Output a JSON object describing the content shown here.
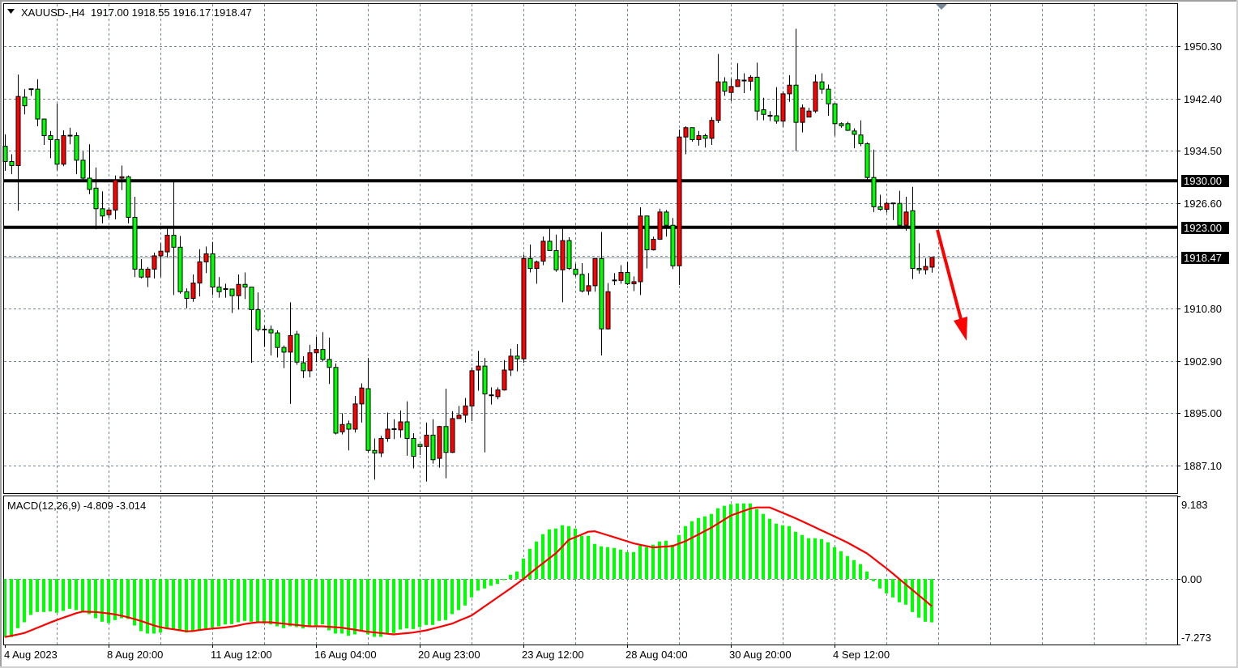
{
  "header": {
    "symbol_label": "XAUUSD-,H4",
    "ohlc_label": "1917.00 1918.55 1916.17 1918.47",
    "menu_icon": "triangle-down-icon"
  },
  "colors": {
    "bull_candle": "#ff0000",
    "bear_candle": "#00ff00",
    "wick": "#000000",
    "grid": "#778899",
    "macd_histogram": "#00ff00",
    "macd_signal": "#ff0000",
    "level_lines": "#000000",
    "bid_line": "#a0a8b0",
    "arrow": "#ff0000"
  },
  "chart_data": [
    {
      "type": "candlestick",
      "symbol": "XAUUSD-",
      "timeframe": "H4",
      "ylim": [
        1882.97,
        1956.62
      ],
      "y_tick_labels": [
        "1950.30",
        "1942.40",
        "1934.50",
        "1926.60",
        "1910.80",
        "1902.90",
        "1895.00",
        "1887.10"
      ],
      "x_tick_labels": [
        "4 Aug 2023",
        "8 Aug 20:00",
        "11 Aug 12:00",
        "16 Aug 04:00",
        "20 Aug 23:00",
        "23 Aug 12:00",
        "28 Aug 04:00",
        "30 Aug 20:00",
        "4 Sep 12:00"
      ],
      "grid": true,
      "horizontal_levels": [
        {
          "price": 1930.0,
          "label": "1930.00"
        },
        {
          "price": 1923.0,
          "label": "1923.00"
        }
      ],
      "bid": {
        "price": 1918.47,
        "label": "1918.47"
      },
      "annotation": {
        "type": "arrow",
        "direction": "down"
      },
      "ohlc": [
        [
          1935.2,
          1937.0,
          1931.5,
          1932.9
        ],
        [
          1932.9,
          1934.0,
          1931.0,
          1932.3
        ],
        [
          1932.3,
          1946.0,
          1925.5,
          1942.7
        ],
        [
          1942.6,
          1943.8,
          1940.0,
          1941.3
        ],
        [
          1943.8,
          1943.9,
          1942.8,
          1943.8
        ],
        [
          1943.8,
          1945.3,
          1938.2,
          1939.3
        ],
        [
          1939.3,
          1939.3,
          1935.4,
          1936.8
        ],
        [
          1936.8,
          1937.5,
          1933.4,
          1936.2
        ],
        [
          1936.2,
          1941.6,
          1931.6,
          1932.5
        ],
        [
          1932.5,
          1937.6,
          1932.2,
          1936.8
        ],
        [
          1936.8,
          1938.0,
          1935.5,
          1936.8
        ],
        [
          1936.8,
          1937.3,
          1931.0,
          1933.1
        ],
        [
          1933.1,
          1934.4,
          1929.9,
          1930.4
        ],
        [
          1930.4,
          1935.5,
          1928.0,
          1928.7
        ],
        [
          1928.9,
          1932.0,
          1922.7,
          1925.8
        ],
        [
          1925.8,
          1928.4,
          1923.6,
          1924.7
        ],
        [
          1924.9,
          1926.0,
          1924.4,
          1925.6
        ],
        [
          1925.6,
          1930.8,
          1924.2,
          1930.1
        ],
        [
          1930.4,
          1932.3,
          1928.6,
          1930.6
        ],
        [
          1930.6,
          1930.8,
          1923.6,
          1924.5
        ],
        [
          1924.5,
          1927.6,
          1915.5,
          1916.7
        ],
        [
          1916.7,
          1918.2,
          1915.3,
          1915.5
        ],
        [
          1915.5,
          1917.0,
          1914.0,
          1916.7
        ],
        [
          1916.7,
          1919.2,
          1915.3,
          1918.7
        ],
        [
          1918.7,
          1920.6,
          1915.5,
          1919.4
        ],
        [
          1919.3,
          1922.8,
          1918.5,
          1921.8
        ],
        [
          1921.8,
          1930.1,
          1912.8,
          1920.0
        ],
        [
          1920.0,
          1921.7,
          1913.0,
          1913.3
        ],
        [
          1913.3,
          1913.8,
          1910.8,
          1912.3
        ],
        [
          1912.3,
          1915.9,
          1911.8,
          1914.6
        ],
        [
          1914.6,
          1919.7,
          1912.6,
          1917.8
        ],
        [
          1917.8,
          1920.1,
          1916.1,
          1919.0
        ],
        [
          1919.0,
          1920.8,
          1912.8,
          1914.0
        ],
        [
          1914.0,
          1915.5,
          1912.4,
          1913.3
        ],
        [
          1913.7,
          1914.5,
          1912.4,
          1913.7
        ],
        [
          1913.7,
          1913.7,
          1910.1,
          1912.7
        ],
        [
          1912.7,
          1915.9,
          1910.6,
          1914.4
        ],
        [
          1914.4,
          1916.2,
          1912.2,
          1914.0
        ],
        [
          1914.0,
          1914.0,
          1902.6,
          1910.6
        ],
        [
          1910.6,
          1913.2,
          1907.3,
          1907.6
        ],
        [
          1907.6,
          1908.2,
          1905.0,
          1907.6
        ],
        [
          1907.6,
          1908.2,
          1903.7,
          1907.1
        ],
        [
          1907.1,
          1907.5,
          1903.4,
          1904.9
        ],
        [
          1904.9,
          1905.2,
          1901.8,
          1904.2
        ],
        [
          1904.2,
          1911.7,
          1896.4,
          1906.7
        ],
        [
          1906.9,
          1907.4,
          1902.3,
          1902.7
        ],
        [
          1902.6,
          1903.6,
          1900.3,
          1901.4
        ],
        [
          1901.4,
          1905.3,
          1900.4,
          1904.1
        ],
        [
          1904.1,
          1906.5,
          1902.7,
          1904.6
        ],
        [
          1904.6,
          1907.2,
          1902.8,
          1903.1
        ],
        [
          1903.1,
          1906.4,
          1899.4,
          1901.9
        ],
        [
          1901.9,
          1902.5,
          1891.8,
          1892.0
        ],
        [
          1892.2,
          1895.0,
          1891.8,
          1893.3
        ],
        [
          1893.4,
          1893.9,
          1889.4,
          1892.6
        ],
        [
          1892.6,
          1897.6,
          1892.1,
          1896.4
        ],
        [
          1896.4,
          1899.5,
          1893.6,
          1898.8
        ],
        [
          1898.7,
          1903.3,
          1889.1,
          1889.4
        ],
        [
          1889.4,
          1891.2,
          1885.0,
          1889.0
        ],
        [
          1889.0,
          1891.6,
          1888.4,
          1891.2
        ],
        [
          1891.2,
          1895.1,
          1890.7,
          1892.6
        ],
        [
          1892.6,
          1894.1,
          1891.1,
          1892.6
        ],
        [
          1892.5,
          1895.4,
          1891.3,
          1893.7
        ],
        [
          1893.7,
          1896.8,
          1888.6,
          1891.2
        ],
        [
          1891.2,
          1892.0,
          1886.7,
          1888.5
        ],
        [
          1890.3,
          1890.3,
          1888.7,
          1890.0
        ],
        [
          1890.0,
          1893.6,
          1884.7,
          1891.7
        ],
        [
          1891.7,
          1894.1,
          1887.4,
          1888.0
        ],
        [
          1888.2,
          1893.1,
          1886.8,
          1893.0
        ],
        [
          1893.0,
          1898.7,
          1885.2,
          1889.1
        ],
        [
          1889.1,
          1895.3,
          1889.0,
          1894.2
        ],
        [
          1894.2,
          1896.1,
          1894.2,
          1894.7
        ],
        [
          1894.7,
          1897.3,
          1893.6,
          1896.1
        ],
        [
          1896.1,
          1901.9,
          1893.8,
          1901.4
        ],
        [
          1901.5,
          1904.4,
          1898.4,
          1902.1
        ],
        [
          1902.1,
          1903.3,
          1889.1,
          1897.9
        ],
        [
          1897.7,
          1898.9,
          1896.3,
          1897.7
        ],
        [
          1897.5,
          1898.9,
          1897.1,
          1898.5
        ],
        [
          1898.5,
          1903.0,
          1898.4,
          1901.5
        ],
        [
          1901.5,
          1904.7,
          1900.6,
          1903.6
        ],
        [
          1903.6,
          1905.4,
          1901.3,
          1903.2
        ],
        [
          1903.2,
          1918.9,
          1902.6,
          1918.3
        ],
        [
          1918.3,
          1920.4,
          1916.2,
          1916.8
        ],
        [
          1916.8,
          1918.0,
          1914.5,
          1917.8
        ],
        [
          1917.9,
          1921.6,
          1917.3,
          1920.9
        ],
        [
          1920.9,
          1922.9,
          1919.5,
          1919.5
        ],
        [
          1919.5,
          1921.9,
          1916.3,
          1916.6
        ],
        [
          1916.6,
          1922.9,
          1911.7,
          1921.0
        ],
        [
          1921.0,
          1921.5,
          1916.6,
          1916.8
        ],
        [
          1916.7,
          1917.5,
          1915.6,
          1915.9
        ],
        [
          1915.9,
          1917.6,
          1913.2,
          1913.4
        ],
        [
          1913.4,
          1916.1,
          1912.8,
          1914.2
        ],
        [
          1914.2,
          1918.3,
          1913.3,
          1918.3
        ],
        [
          1918.3,
          1922.3,
          1903.7,
          1907.7
        ],
        [
          1907.7,
          1914.6,
          1907.6,
          1913.3
        ],
        [
          1915.0,
          1916.1,
          1914.3,
          1915.0
        ],
        [
          1915.0,
          1917.3,
          1914.5,
          1916.2
        ],
        [
          1916.2,
          1917.8,
          1914.3,
          1914.5
        ],
        [
          1914.5,
          1915.6,
          1913.4,
          1914.8
        ],
        [
          1914.8,
          1926.0,
          1912.8,
          1924.7
        ],
        [
          1924.7,
          1924.7,
          1916.8,
          1919.6
        ],
        [
          1919.6,
          1921.6,
          1919.5,
          1921.2
        ],
        [
          1921.2,
          1925.8,
          1921.1,
          1925.3
        ],
        [
          1925.3,
          1925.6,
          1921.6,
          1923.3
        ],
        [
          1923.3,
          1924.4,
          1916.7,
          1917.2
        ],
        [
          1917.2,
          1937.7,
          1914.3,
          1936.6
        ],
        [
          1936.6,
          1938.2,
          1934.0,
          1938.0
        ],
        [
          1938.0,
          1938.0,
          1935.9,
          1936.2
        ],
        [
          1936.2,
          1937.5,
          1935.3,
          1936.8
        ],
        [
          1936.8,
          1937.1,
          1935.0,
          1936.4
        ],
        [
          1936.4,
          1939.6,
          1935.4,
          1939.1
        ],
        [
          1939.1,
          1949.1,
          1938.7,
          1944.9
        ],
        [
          1944.9,
          1945.6,
          1942.8,
          1943.5
        ],
        [
          1943.3,
          1945.4,
          1942.0,
          1944.2
        ],
        [
          1944.2,
          1947.7,
          1944.2,
          1945.2
        ],
        [
          1945.1,
          1946.2,
          1943.2,
          1945.1
        ],
        [
          1945.0,
          1945.9,
          1943.6,
          1945.6
        ],
        [
          1945.6,
          1947.8,
          1939.1,
          1940.5
        ],
        [
          1940.7,
          1942.5,
          1939.1,
          1940.0
        ],
        [
          1939.8,
          1940.5,
          1939.0,
          1939.8
        ],
        [
          1939.8,
          1944.1,
          1938.6,
          1939.0
        ],
        [
          1939.0,
          1943.5,
          1938.1,
          1943.1
        ],
        [
          1943.1,
          1945.9,
          1941.9,
          1944.4
        ],
        [
          1944.4,
          1952.9,
          1934.5,
          1938.8
        ],
        [
          1938.8,
          1941.5,
          1937.3,
          1941.0
        ],
        [
          1939.6,
          1941.0,
          1939.6,
          1940.5
        ],
        [
          1940.5,
          1946.0,
          1940.2,
          1944.9
        ],
        [
          1944.9,
          1946.2,
          1943.1,
          1943.8
        ],
        [
          1943.8,
          1944.5,
          1939.8,
          1941.6
        ],
        [
          1941.6,
          1941.7,
          1936.8,
          1938.6
        ],
        [
          1938.6,
          1938.8,
          1938.0,
          1938.3
        ],
        [
          1938.6,
          1938.9,
          1937.5,
          1937.6
        ],
        [
          1937.5,
          1937.9,
          1934.9,
          1937.0
        ],
        [
          1936.9,
          1939.1,
          1935.2,
          1935.6
        ],
        [
          1935.6,
          1935.8,
          1929.8,
          1930.5
        ],
        [
          1930.5,
          1934.7,
          1925.3,
          1926.1
        ],
        [
          1926.1,
          1927.9,
          1925.5,
          1925.7
        ],
        [
          1925.7,
          1926.9,
          1925.2,
          1926.6
        ],
        [
          1926.6,
          1926.6,
          1924.1,
          1926.6
        ],
        [
          1926.6,
          1928.5,
          1923.3,
          1923.3
        ],
        [
          1923.3,
          1927.6,
          1922.5,
          1925.3
        ],
        [
          1925.5,
          1929.1,
          1915.2,
          1916.8
        ],
        [
          1916.8,
          1920.6,
          1916.0,
          1916.6
        ],
        [
          1916.6,
          1918.3,
          1915.9,
          1917.1
        ],
        [
          1917.0,
          1918.55,
          1916.17,
          1918.47
        ]
      ]
    },
    {
      "type": "bar+line",
      "title": "MACD(12,26,9) -4.809 -3.014",
      "ylim": [
        -7.273,
        9.183
      ],
      "y_tick_labels": [
        "9.183",
        "0.00",
        "-7.273"
      ],
      "histogram": [
        -6.45,
        -6.45,
        -5.46,
        -4.8,
        -3.99,
        -3.66,
        -3.66,
        -3.6,
        -3.75,
        -3.54,
        -3.3,
        -3.45,
        -3.6,
        -3.9,
        -4.35,
        -4.74,
        -4.89,
        -4.56,
        -4.35,
        -4.44,
        -5.16,
        -5.79,
        -6.06,
        -6.06,
        -5.94,
        -5.55,
        -5.55,
        -5.7,
        -5.94,
        -5.85,
        -5.64,
        -5.49,
        -5.4,
        -5.25,
        -5.04,
        -5.01,
        -4.8,
        -4.65,
        -4.74,
        -4.8,
        -4.95,
        -5.04,
        -5.25,
        -5.46,
        -5.25,
        -5.34,
        -5.49,
        -5.16,
        -5.19,
        -5.04,
        -5.7,
        -6.06,
        -6.06,
        -6.3,
        -6.15,
        -5.79,
        -6.15,
        -6.42,
        -6.42,
        -6.0,
        -6.0,
        -5.61,
        -5.49,
        -5.55,
        -5.34,
        -5.1,
        -5.1,
        -4.65,
        -4.56,
        -3.9,
        -3.45,
        -2.94,
        -2.04,
        -1.29,
        -1.05,
        -0.75,
        -0.54,
        -0.12,
        0.48,
        0.84,
        2.28,
        3.36,
        4.17,
        4.98,
        5.52,
        5.61,
        5.97,
        5.88,
        5.61,
        4.8,
        4.8,
        3.9,
        3.63,
        3.54,
        3.45,
        3.27,
        3.0,
        3.0,
        3.72,
        3.54,
        3.81,
        4.17,
        4.26,
        3.81,
        4.89,
        5.88,
        6.42,
        6.78,
        6.96,
        7.23,
        7.86,
        8.13,
        8.31,
        8.4,
        8.4,
        8.4,
        7.77,
        7.23,
        6.69,
        6.15,
        5.97,
        5.88,
        5.25,
        4.89,
        4.53,
        4.53,
        4.44,
        4.08,
        3.54,
        3.09,
        2.55,
        2.1,
        1.65,
        0.84,
        -0.24,
        -1.05,
        -1.59,
        -2.04,
        -2.58,
        -2.85,
        -3.66,
        -4.29,
        -4.74,
        -4.809
      ],
      "signal": [
        -6.45,
        -6.3,
        -6.16,
        -6.0,
        -5.71,
        -5.42,
        -5.12,
        -4.83,
        -4.56,
        -4.3,
        -4.05,
        -3.79,
        -3.61,
        -3.64,
        -3.66,
        -3.74,
        -3.82,
        -3.93,
        -4.07,
        -4.24,
        -4.45,
        -4.66,
        -4.91,
        -5.15,
        -5.35,
        -5.48,
        -5.58,
        -5.69,
        -5.81,
        -5.78,
        -5.66,
        -5.57,
        -5.5,
        -5.44,
        -5.38,
        -5.29,
        -5.15,
        -5.0,
        -4.89,
        -4.8,
        -4.8,
        -4.8,
        -4.88,
        -4.95,
        -5.03,
        -5.1,
        -5.18,
        -5.25,
        -5.25,
        -5.25,
        -5.3,
        -5.35,
        -5.4,
        -5.52,
        -5.63,
        -5.74,
        -5.85,
        -5.92,
        -6.0,
        -6.08,
        -6.15,
        -6.08,
        -6.01,
        -5.94,
        -5.82,
        -5.7,
        -5.51,
        -5.33,
        -5.14,
        -4.95,
        -4.65,
        -4.35,
        -4.05,
        -3.55,
        -3.05,
        -2.55,
        -2.05,
        -1.55,
        -1.05,
        -0.53,
        0.0,
        0.6,
        1.2,
        1.75,
        2.3,
        2.85,
        3.6,
        4.35,
        4.64,
        4.95,
        5.25,
        5.31,
        5.09,
        4.87,
        4.65,
        4.42,
        4.19,
        3.96,
        3.81,
        3.66,
        3.51,
        3.56,
        3.61,
        3.66,
        3.93,
        4.2,
        4.58,
        4.95,
        5.33,
        5.7,
        6.15,
        6.6,
        7.05,
        7.31,
        7.56,
        7.82,
        7.95,
        7.95,
        7.95,
        7.65,
        7.35,
        7.05,
        6.75,
        6.42,
        6.08,
        5.74,
        5.4,
        5.07,
        4.73,
        4.39,
        4.05,
        3.65,
        3.25,
        2.85,
        2.3,
        1.75,
        1.2,
        0.6,
        0.0,
        -0.6,
        -1.2,
        -1.81,
        -2.4,
        -3.014
      ]
    }
  ]
}
